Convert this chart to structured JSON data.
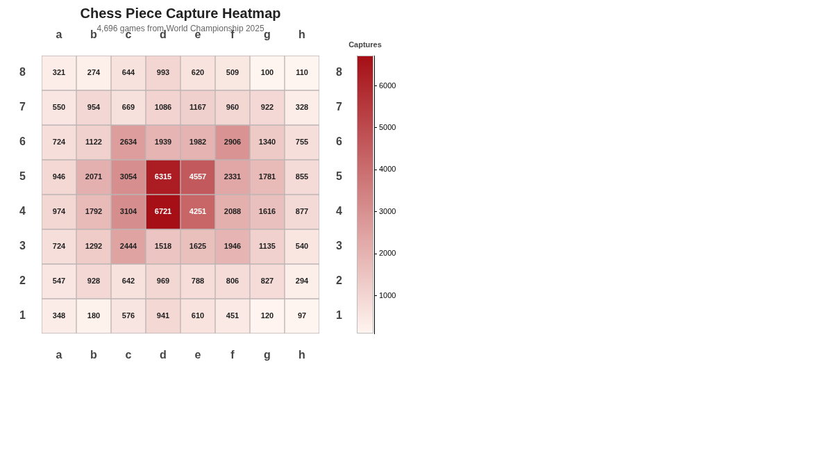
{
  "chart_data": {
    "type": "heatmap",
    "title": "Chess Piece Capture Heatmap",
    "subtitle": "4,696 games from World Championship 2025",
    "categories": [
      "a",
      "b",
      "c",
      "d",
      "e",
      "f",
      "g",
      "h"
    ],
    "y_categories": [
      "8",
      "7",
      "6",
      "5",
      "4",
      "3",
      "2",
      "1"
    ],
    "y2_categories": [
      "8",
      "7",
      "6",
      "5",
      "4",
      "3",
      "2",
      "1"
    ],
    "cells": [
      [
        321,
        274,
        644,
        993,
        620,
        509,
        100,
        110
      ],
      [
        550,
        954,
        669,
        1086,
        1167,
        960,
        922,
        328
      ],
      [
        724,
        1122,
        2634,
        1939,
        1982,
        2906,
        1340,
        755
      ],
      [
        946,
        2071,
        3054,
        6315,
        4557,
        2331,
        1781,
        855
      ],
      [
        974,
        1792,
        3104,
        6721,
        4251,
        2088,
        1616,
        877
      ],
      [
        724,
        1292,
        2444,
        1518,
        1625,
        1946,
        1135,
        540
      ],
      [
        547,
        928,
        642,
        969,
        788,
        806,
        827,
        294
      ],
      [
        348,
        180,
        576,
        941,
        610,
        451,
        120,
        97
      ]
    ],
    "clabel": "Captures",
    "clim": [
      97,
      6721
    ],
    "cticks": [
      1000,
      2000,
      3000,
      4000,
      5000,
      6000
    ],
    "data_labels": true
  }
}
